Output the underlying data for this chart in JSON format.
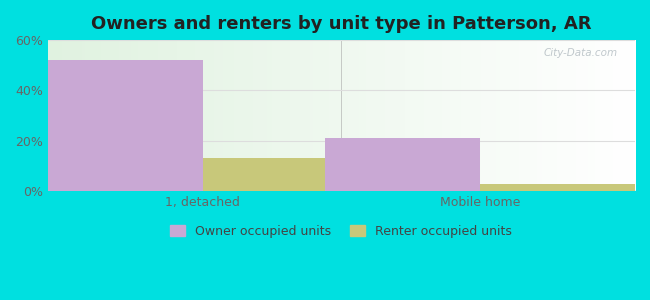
{
  "title": "Owners and renters by unit type in Patterson, AR",
  "categories": [
    "1, detached",
    "Mobile home"
  ],
  "owner_values": [
    52,
    21
  ],
  "renter_values": [
    13,
    3
  ],
  "owner_color": "#c9a8d4",
  "renter_color": "#c8c87a",
  "ylim": [
    0,
    60
  ],
  "yticks": [
    0,
    20,
    40,
    60
  ],
  "ytick_labels": [
    "0%",
    "20%",
    "40%",
    "60%"
  ],
  "background_outer": "#00e0e0",
  "legend_owner": "Owner occupied units",
  "legend_renter": "Renter occupied units",
  "watermark": "City-Data.com",
  "bar_width": 0.28,
  "group_positions": [
    0.28,
    0.78
  ],
  "xlim": [
    0.0,
    1.06
  ]
}
